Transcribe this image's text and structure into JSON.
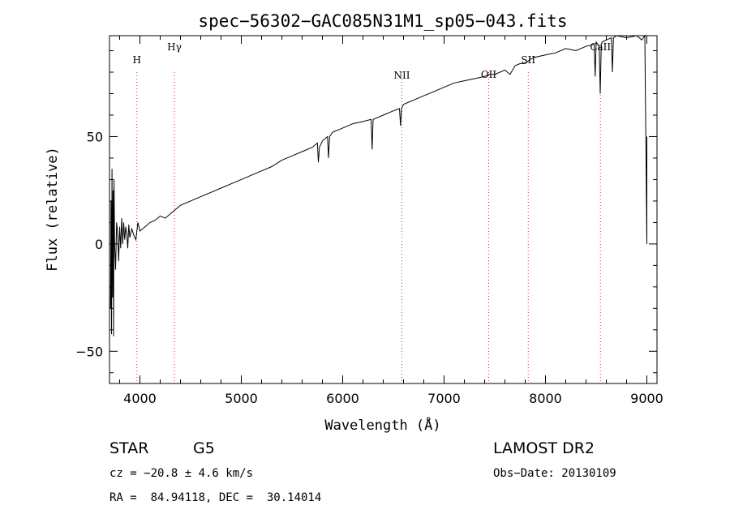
{
  "chart_data": {
    "type": "line",
    "title": "spec−56302−GAC085N31M1_sp05−043.fits",
    "xlabel": "Wavelength (Å)",
    "ylabel": "Flux (relative)",
    "xlim": [
      3700,
      9100
    ],
    "ylim": [
      -65,
      97
    ],
    "xticks": [
      4000,
      5000,
      6000,
      7000,
      8000,
      9000
    ],
    "xtick_labels": [
      "4000",
      "5000",
      "6000",
      "7000",
      "8000",
      "9000"
    ],
    "yticks": [
      -50,
      0,
      50
    ],
    "ytick_labels": [
      "−50",
      "0",
      "50"
    ],
    "grid": false,
    "series": [
      {
        "x": [
          3710,
          3715,
          3720,
          3725,
          3730,
          3735,
          3740,
          3745,
          3750,
          3760,
          3770,
          3780,
          3790,
          3800,
          3810,
          3820,
          3830,
          3840,
          3850,
          3860,
          3870,
          3880,
          3890,
          3900,
          3920,
          3940,
          3960,
          3980,
          4000,
          4050,
          4100,
          4150,
          4200,
          4250,
          4300,
          4350,
          4400,
          4500,
          4600,
          4700,
          4800,
          4900,
          5000,
          5100,
          5200,
          5300,
          5400,
          5500,
          5600,
          5700,
          5750,
          5760,
          5770,
          5800,
          5850,
          5860,
          5870,
          5900,
          6000,
          6100,
          6200,
          6280,
          6290,
          6300,
          6400,
          6500,
          6560,
          6570,
          6580,
          6600,
          6700,
          6800,
          6900,
          7000,
          7100,
          7200,
          7300,
          7400,
          7450,
          7500,
          7600,
          7650,
          7700,
          7750,
          7800,
          7850,
          7900,
          8000,
          8100,
          8200,
          8300,
          8400,
          8480,
          8490,
          8500,
          8530,
          8540,
          8550,
          8560,
          8600,
          8650,
          8660,
          8670,
          8700,
          8800,
          8900,
          8950,
          8980,
          9000,
          9000
        ],
        "y": [
          -30,
          20,
          -42,
          35,
          -25,
          25,
          -43,
          30,
          0,
          -12,
          10,
          5,
          -8,
          8,
          -2,
          12,
          0,
          10,
          2,
          8,
          5,
          -2,
          9,
          3,
          7,
          4,
          2,
          10,
          6,
          8,
          10,
          11,
          13,
          12,
          14,
          16,
          18,
          20,
          22,
          24,
          26,
          28,
          30,
          32,
          34,
          36,
          39,
          41,
          43,
          45,
          47,
          38,
          45,
          48,
          50,
          40,
          50,
          52,
          54,
          56,
          57,
          58,
          44,
          58,
          60,
          62,
          63,
          55,
          63,
          65,
          67,
          69,
          71,
          73,
          75,
          76,
          77,
          78,
          79,
          79,
          81,
          79,
          83,
          84,
          84,
          86,
          87,
          88,
          89,
          91,
          90,
          92,
          93,
          78,
          94,
          92,
          70,
          93,
          94,
          95,
          96,
          80,
          96,
          97,
          96,
          97,
          95,
          97,
          0,
          50
        ]
      }
    ],
    "line_markers": [
      {
        "label": "H",
        "x": 3970
      },
      {
        "label": "Hγ",
        "x": 4340
      },
      {
        "label": "NII",
        "x": 6584
      },
      {
        "label": "OII",
        "x": 7440
      },
      {
        "label": "SII",
        "x": 7830
      },
      {
        "label": "CaII",
        "x": 8542
      }
    ]
  },
  "info": {
    "object_type": "STAR",
    "subclass": "G5",
    "survey": "LAMOST DR2",
    "cz": "cz = −20.8 ± 4.6 km/s",
    "obs_date": "Obs−Date: 20130109",
    "coords": "RA =  84.94118, DEC =  30.14014"
  },
  "colors": {
    "line": "#000000",
    "marker_line": "#cc3333",
    "axes": "#000000",
    "background": "#ffffff"
  }
}
